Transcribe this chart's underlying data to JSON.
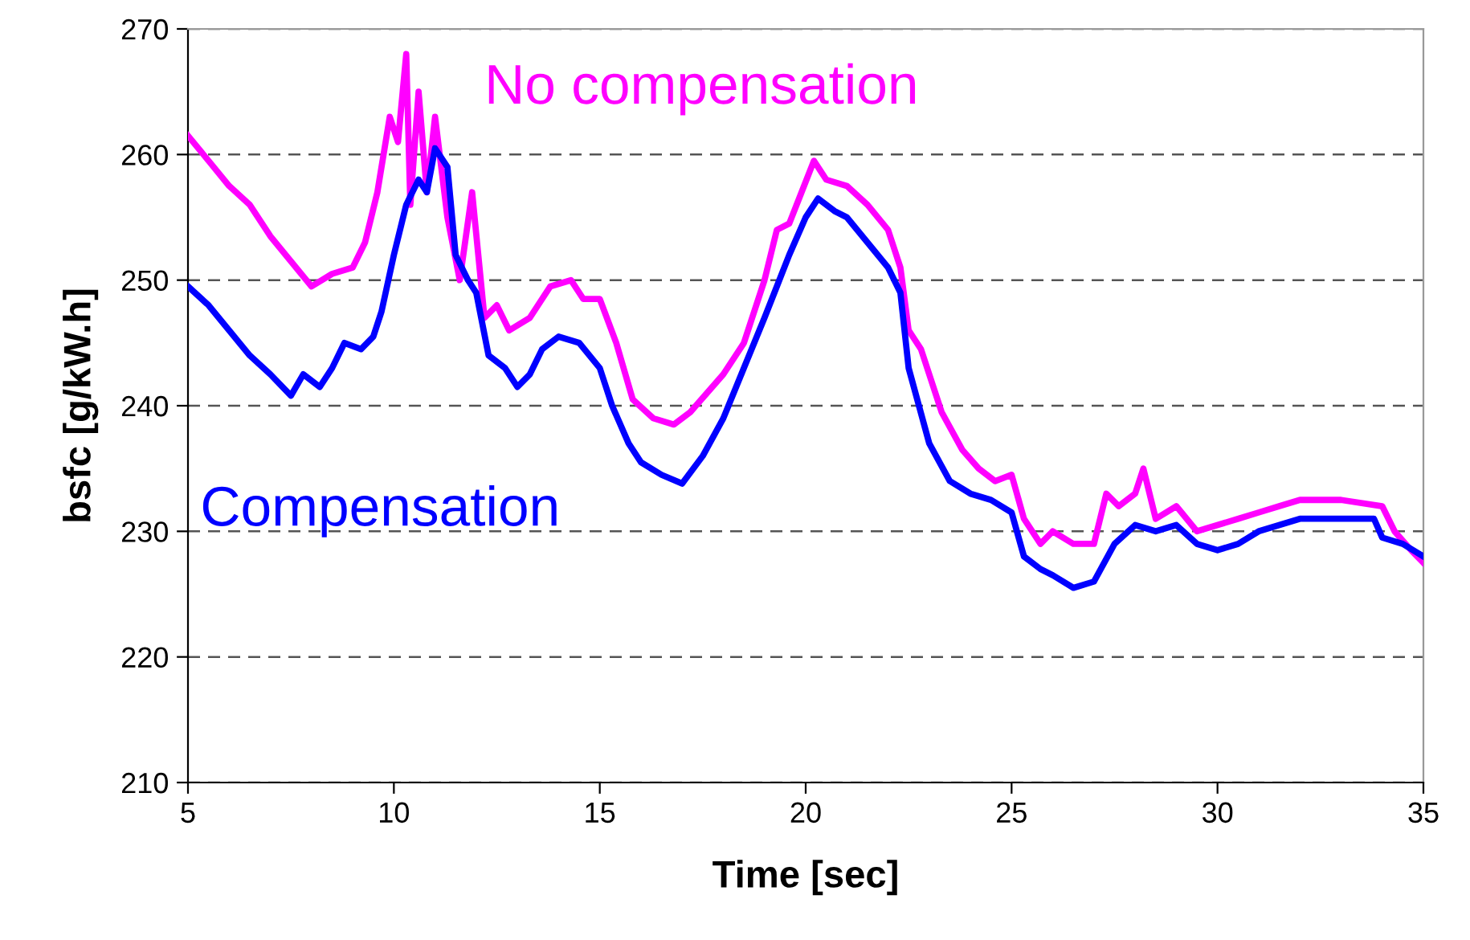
{
  "chart_data": {
    "type": "line",
    "xlabel": "Time [sec]",
    "ylabel": "bsfc [g/kW.h]",
    "xlim": [
      5,
      35
    ],
    "xticks": [
      5,
      10,
      15,
      20,
      25,
      30,
      35
    ],
    "ylim": [
      210,
      270
    ],
    "yticks": [
      210,
      220,
      230,
      240,
      250,
      260,
      270
    ],
    "grid": "y",
    "legend": false,
    "marker": "none",
    "line_style": "solid",
    "series": [
      {
        "name": "No compensation",
        "color": "#ff00ff",
        "x": [
          5,
          5.5,
          6,
          6.5,
          7,
          7.5,
          8,
          8.5,
          9,
          9.3,
          9.6,
          9.9,
          10.1,
          10.3,
          10.4,
          10.6,
          10.8,
          11,
          11.3,
          11.6,
          11.9,
          12.2,
          12.5,
          12.8,
          13.3,
          13.8,
          14.3,
          14.6,
          15,
          15.4,
          15.8,
          16.3,
          16.8,
          17.2,
          17.6,
          18,
          18.5,
          19,
          19.3,
          19.6,
          19.9,
          20.2,
          20.5,
          21,
          21.5,
          22,
          22.3,
          22.5,
          22.8,
          23.3,
          23.8,
          24.2,
          24.6,
          25,
          25.3,
          25.7,
          26,
          26.5,
          27,
          27.3,
          27.6,
          28,
          28.2,
          28.5,
          29,
          29.5,
          30,
          30.5,
          31,
          31.5,
          32,
          33,
          34,
          34.3,
          34.7,
          35
        ],
        "values": [
          261.5,
          259.5,
          257.5,
          256,
          253.5,
          251.5,
          249.5,
          250.5,
          251,
          253,
          257,
          263,
          261,
          268,
          256,
          265,
          257,
          263,
          255,
          250,
          257,
          247,
          248,
          246,
          247,
          249.5,
          250,
          248.5,
          248.5,
          245,
          240.5,
          239,
          238.5,
          239.5,
          241,
          242.5,
          245,
          250,
          254,
          254.5,
          257,
          259.5,
          258,
          257.5,
          256,
          254,
          251,
          246,
          244.5,
          239.5,
          236.5,
          235,
          234,
          234.5,
          231,
          229,
          230,
          229,
          229,
          233,
          232,
          233,
          235,
          231,
          232,
          230,
          230.5,
          231,
          231.5,
          232,
          232.5,
          232.5,
          232,
          230,
          228.5,
          227.5
        ]
      },
      {
        "name": "Compensation",
        "color": "#0000ff",
        "x": [
          5,
          5.5,
          6,
          6.5,
          7,
          7.5,
          7.8,
          8.2,
          8.5,
          8.8,
          9.2,
          9.5,
          9.7,
          10,
          10.3,
          10.6,
          10.8,
          11,
          11.3,
          11.5,
          11.8,
          12,
          12.3,
          12.7,
          13,
          13.3,
          13.6,
          14,
          14.5,
          15,
          15.3,
          15.7,
          16,
          16.5,
          17,
          17.5,
          18,
          18.5,
          19,
          19.3,
          19.6,
          20,
          20.3,
          20.7,
          21,
          21.5,
          22,
          22.3,
          22.5,
          23,
          23.5,
          24,
          24.5,
          25,
          25.3,
          25.7,
          26,
          26.5,
          27,
          27.5,
          28,
          28.5,
          29,
          29.5,
          30,
          30.5,
          31,
          31.5,
          32,
          33,
          33.8,
          34,
          34.5,
          35
        ],
        "values": [
          249.5,
          248,
          246,
          244,
          242.5,
          240.8,
          242.5,
          241.5,
          243,
          245,
          244.5,
          245.5,
          247.5,
          252,
          256,
          258,
          257,
          260.5,
          259,
          252,
          250,
          249,
          244,
          243,
          241.5,
          242.5,
          244.5,
          245.5,
          245,
          243,
          240,
          237,
          235.5,
          234.5,
          233.8,
          236,
          239,
          243,
          247,
          249.5,
          252,
          255,
          256.5,
          255.5,
          255,
          253,
          251,
          249,
          243,
          237,
          234,
          233,
          232.5,
          231.5,
          228,
          227,
          226.5,
          225.5,
          226,
          229,
          230.5,
          230,
          230.5,
          229,
          228.5,
          229,
          230,
          230.5,
          231,
          231,
          231,
          229.5,
          229,
          228
        ]
      }
    ]
  }
}
